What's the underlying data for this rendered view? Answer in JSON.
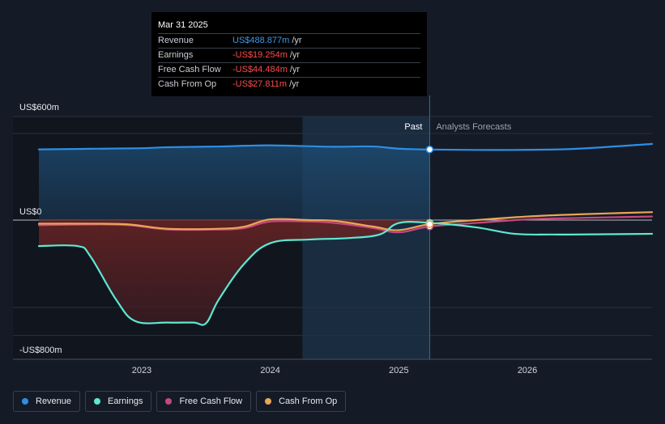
{
  "tooltip": {
    "date": "Mar 31 2025",
    "rows": [
      {
        "label": "Revenue",
        "value": "US$488.877m",
        "unit": "/yr",
        "color": "#3d9be9"
      },
      {
        "label": "Earnings",
        "value": "-US$19.254m",
        "unit": "/yr",
        "color": "#ff4b4b"
      },
      {
        "label": "Free Cash Flow",
        "value": "-US$44.484m",
        "unit": "/yr",
        "color": "#ff4b4b"
      },
      {
        "label": "Cash From Op",
        "value": "-US$27.811m",
        "unit": "/yr",
        "color": "#ff4b4b"
      }
    ]
  },
  "labels": {
    "past": "Past",
    "forecast": "Analysts Forecasts"
  },
  "legend": [
    {
      "label": "Revenue",
      "color": "#2e8ee6"
    },
    {
      "label": "Earnings",
      "color": "#5ee8d3"
    },
    {
      "label": "Free Cash Flow",
      "color": "#c8477f"
    },
    {
      "label": "Cash From Op",
      "color": "#e9a756"
    }
  ],
  "chart_data": {
    "type": "line",
    "y_tick_labels": [
      "US$600m",
      "US$0",
      "-US$800m"
    ],
    "y_ticks": [
      600,
      0,
      -800
    ],
    "ylim": [
      -800,
      600
    ],
    "x_tick_labels": [
      "2023",
      "2024",
      "2025",
      "2026"
    ],
    "x_ticks": [
      2023,
      2024,
      2025,
      2026
    ],
    "xlim": [
      2022.2,
      2026.97
    ],
    "past_end": 2025.24,
    "shade_start": 2024.25,
    "series": [
      {
        "name": "Revenue",
        "color": "#2e8ee6",
        "x": [
          2022.2,
          2022.6,
          2023.0,
          2023.2,
          2023.6,
          2023.8,
          2024.0,
          2024.3,
          2024.5,
          2024.8,
          2025.0,
          2025.24,
          2025.6,
          2026.0,
          2026.4,
          2026.97
        ],
        "y": [
          490,
          494,
          498,
          505,
          510,
          515,
          518,
          512,
          508,
          510,
          495,
          489,
          486,
          487,
          495,
          528
        ]
      },
      {
        "name": "Earnings",
        "color": "#5ee8d3",
        "x": [
          2022.2,
          2022.5,
          2022.6,
          2022.8,
          2022.95,
          2023.2,
          2023.4,
          2023.5,
          2023.6,
          2023.8,
          2024.0,
          2024.3,
          2024.6,
          2024.85,
          2025.0,
          2025.24,
          2025.6,
          2025.9,
          2026.2,
          2026.6,
          2026.97
        ],
        "y": [
          -180,
          -180,
          -250,
          -550,
          -700,
          -710,
          -710,
          -715,
          -550,
          -300,
          -160,
          -135,
          -125,
          -100,
          -20,
          -19,
          -50,
          -95,
          -100,
          -98,
          -95
        ]
      },
      {
        "name": "Free Cash Flow",
        "color": "#c8477f",
        "x": [
          2022.2,
          2022.6,
          2022.9,
          2023.2,
          2023.6,
          2023.8,
          2024.0,
          2024.3,
          2024.5,
          2024.8,
          2025.0,
          2025.24,
          2025.6,
          2026.0,
          2026.4,
          2026.97
        ],
        "y": [
          -35,
          -30,
          -35,
          -65,
          -65,
          -55,
          -10,
          -10,
          -20,
          -55,
          -85,
          -44,
          -20,
          5,
          15,
          25
        ]
      },
      {
        "name": "Cash From Op",
        "color": "#e9a756",
        "x": [
          2022.2,
          2022.6,
          2022.9,
          2023.2,
          2023.6,
          2023.8,
          2024.0,
          2024.3,
          2024.5,
          2024.8,
          2025.0,
          2025.24,
          2025.6,
          2026.0,
          2026.4,
          2026.97
        ],
        "y": [
          -25,
          -25,
          -30,
          -60,
          -60,
          -45,
          5,
          0,
          -5,
          -45,
          -70,
          -28,
          0,
          25,
          40,
          55
        ]
      }
    ]
  }
}
